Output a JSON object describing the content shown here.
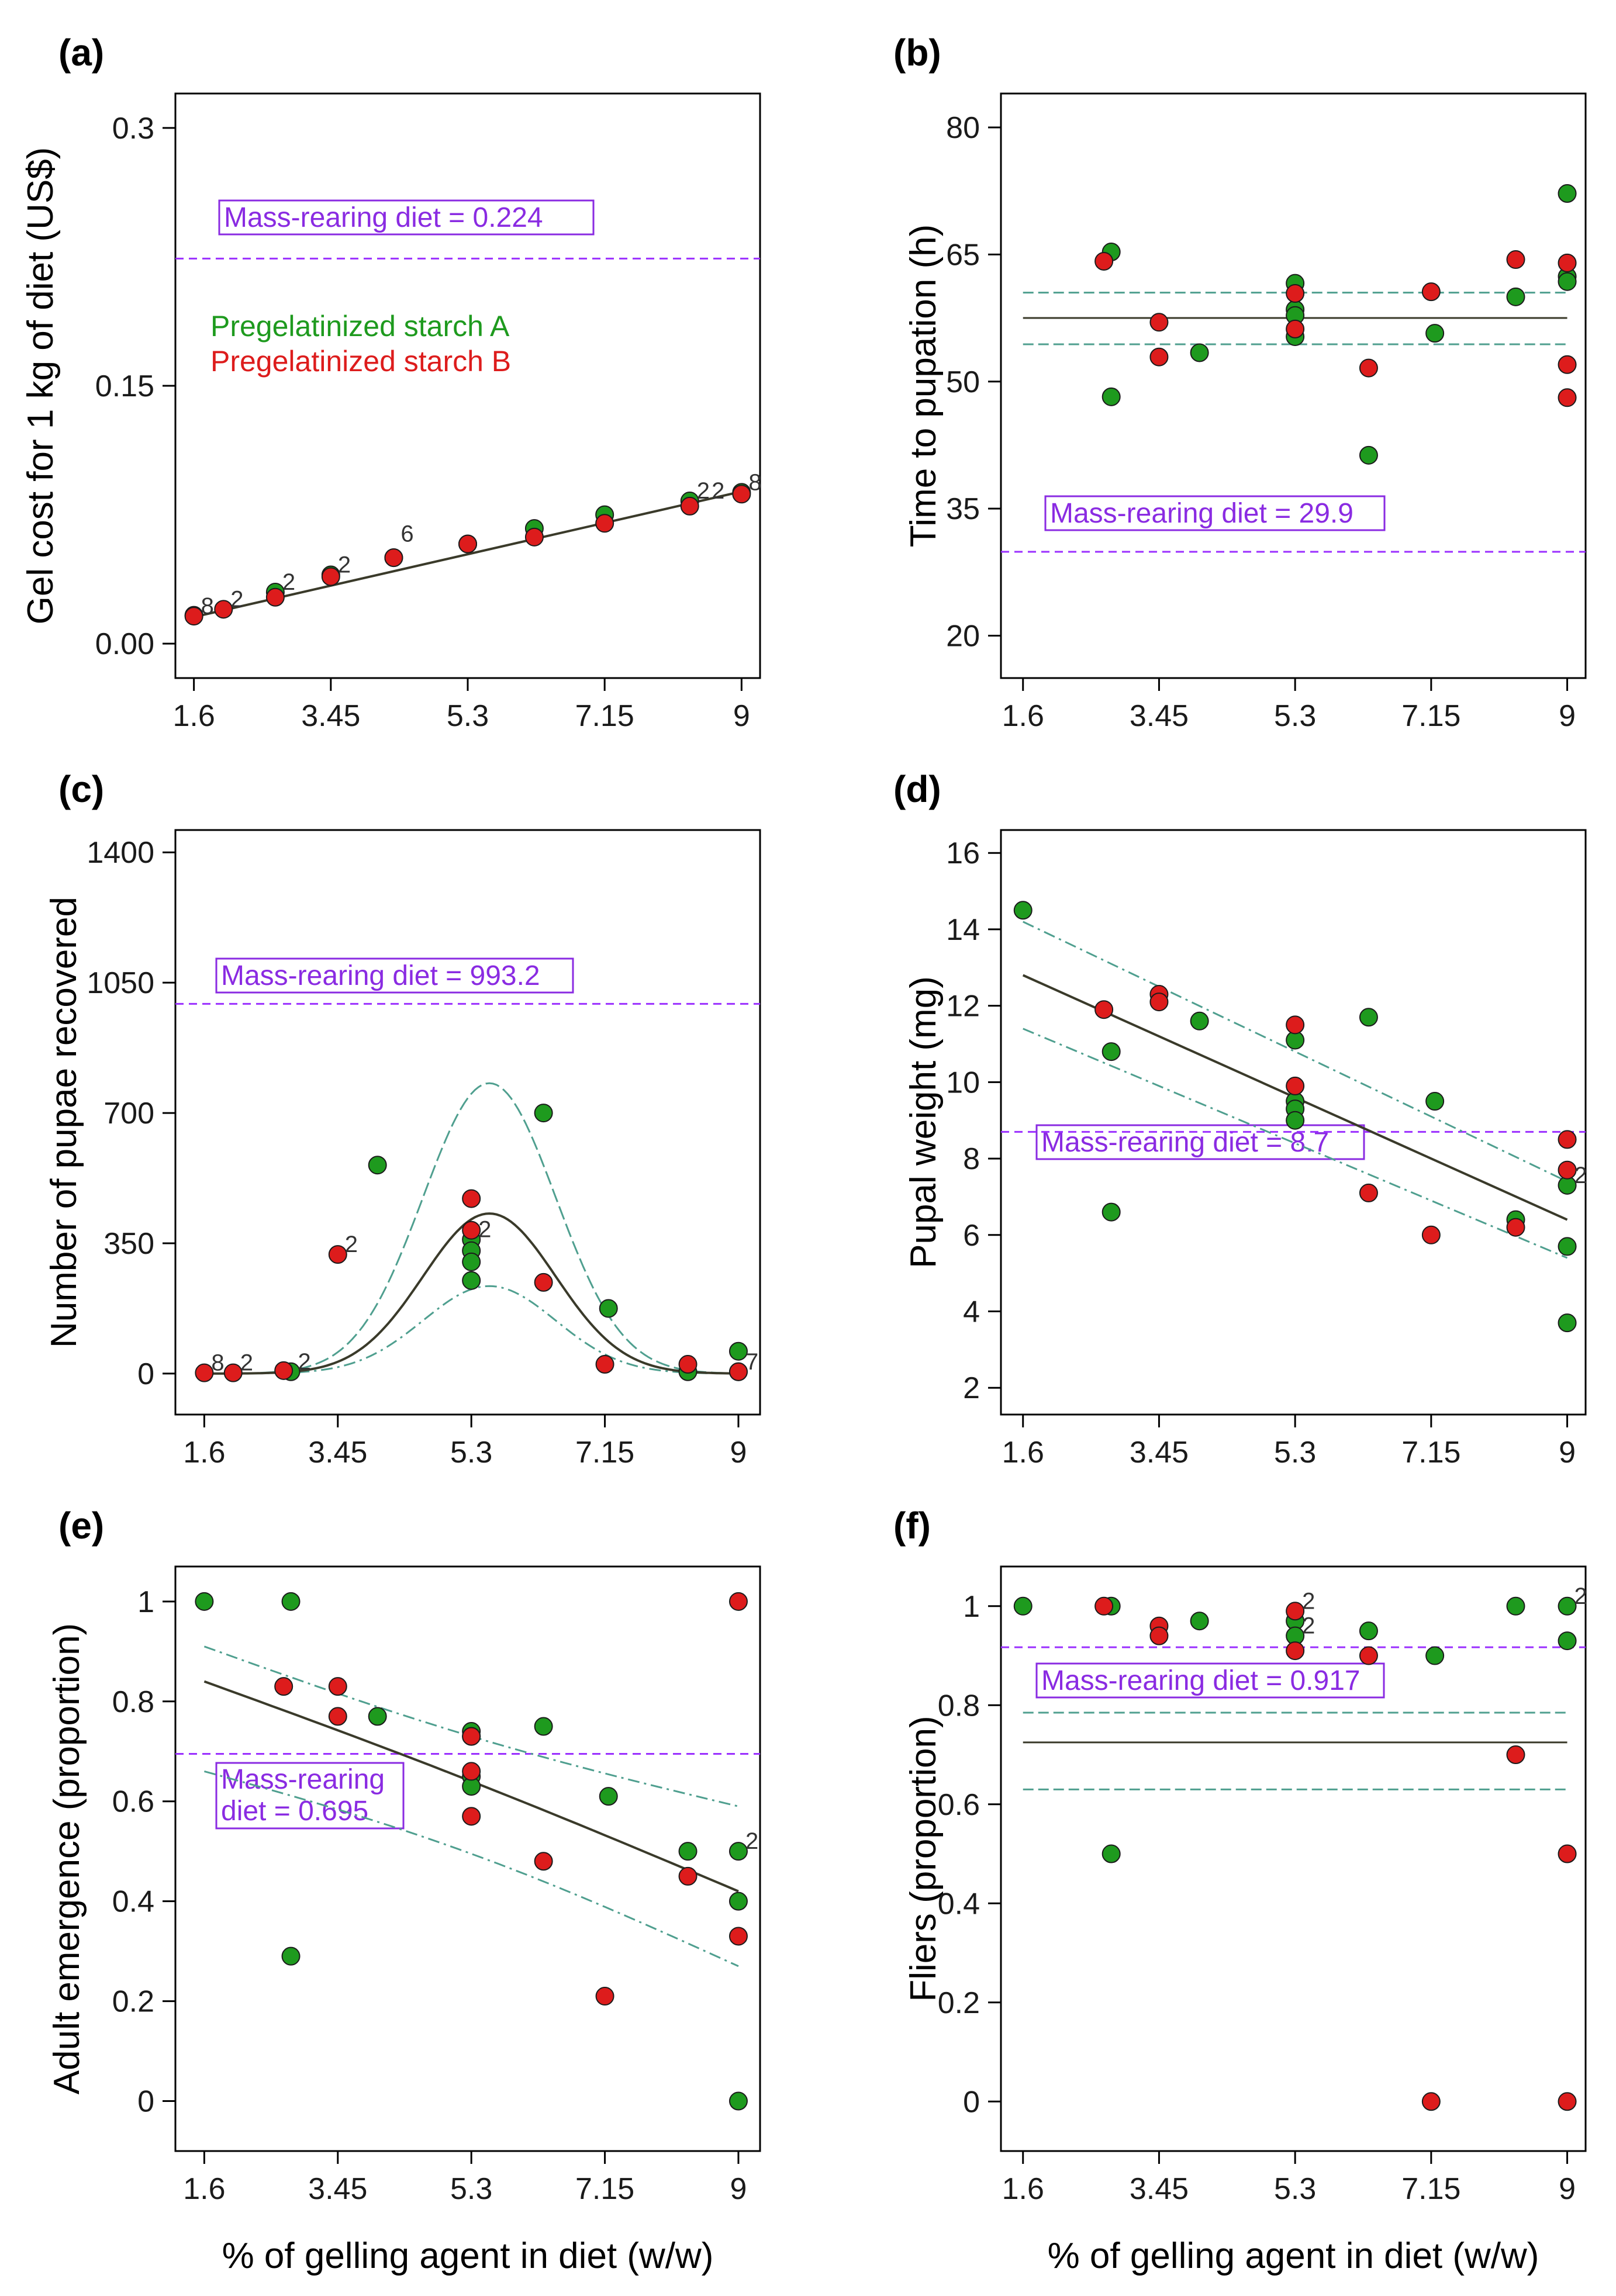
{
  "colors": {
    "starch_a": "#1e9a1e",
    "starch_b": "#dd1c1c",
    "reference": "#9b30ff",
    "fit": "#3a3a2a",
    "ci": "#4f9f8f",
    "axis": "#000000"
  },
  "x_axis_label": "% of gelling agent in diet (w/w)",
  "chart_data": [
    {
      "panel": "(a)",
      "type": "scatter",
      "ylabel": "Gel cost for 1 kg of diet (US$)",
      "xlim": [
        1.35,
        9.25
      ],
      "ylim": [
        -0.02,
        0.32
      ],
      "xticks": [
        1.6,
        3.45,
        5.3,
        7.15,
        9
      ],
      "xtick_labels": [
        "1.6",
        "3.45",
        "5.3",
        "7.15",
        "9"
      ],
      "yticks": [
        0,
        0.15,
        0.3
      ],
      "ytick_labels": [
        "0.00",
        "0.15",
        "0.3"
      ],
      "reference": {
        "value": 0.224,
        "label": "Mass-rearing diet = 0.224",
        "box_anchor": "top-left"
      },
      "legend": {
        "entries": [
          "Pregelatinized starch A",
          "Pregelatinized starch B"
        ],
        "position": "upper-left"
      },
      "series": [
        {
          "name": "Pregelatinized starch A",
          "points": [
            [
              1.6,
              0.0165
            ],
            [
              2.7,
              0.03
            ],
            [
              3.45,
              0.04
            ],
            [
              4.3,
              0.05
            ],
            [
              5.3,
              0.058
            ],
            [
              6.2,
              0.067
            ],
            [
              7.15,
              0.075
            ],
            [
              8.3,
              0.083
            ],
            [
              9,
              0.088
            ]
          ]
        },
        {
          "name": "Pregelatinized starch B",
          "points": [
            [
              1.6,
              0.016
            ],
            [
              2,
              0.02
            ],
            [
              2.7,
              0.027
            ],
            [
              3.45,
              0.039
            ],
            [
              4.3,
              0.05
            ],
            [
              5.3,
              0.058
            ],
            [
              6.2,
              0.062
            ],
            [
              7.15,
              0.07
            ],
            [
              8.3,
              0.08
            ],
            [
              9,
              0.087
            ]
          ]
        }
      ],
      "fit": {
        "kind": "line",
        "x": [
          1.6,
          9
        ],
        "y": [
          0.0155,
          0.0885
        ]
      },
      "annotations": [
        {
          "x": 1.6,
          "y": 0.016,
          "text": "8"
        },
        {
          "x": 2.0,
          "y": 0.02,
          "text": "2"
        },
        {
          "x": 2.7,
          "y": 0.03,
          "text": "2"
        },
        {
          "x": 3.45,
          "y": 0.04,
          "text": "2"
        },
        {
          "x": 4.3,
          "y": 0.058,
          "text": "6"
        },
        {
          "x": 8.3,
          "y": 0.083,
          "text": "2"
        },
        {
          "x": 8.5,
          "y": 0.083,
          "text": "2"
        },
        {
          "x": 9,
          "y": 0.088,
          "text": "8"
        }
      ]
    },
    {
      "panel": "(b)",
      "type": "scatter",
      "ylabel": "Time to pupation (h)",
      "xlim": [
        1.3,
        9.25
      ],
      "ylim": [
        15,
        84
      ],
      "xticks": [
        1.6,
        3.45,
        5.3,
        7.15,
        9
      ],
      "xtick_labels": [
        "1.6",
        "3.45",
        "5.3",
        "7.15",
        "9"
      ],
      "yticks": [
        20,
        35,
        50,
        65,
        80
      ],
      "ytick_labels": [
        "20",
        "35",
        "50",
        "65",
        "80"
      ],
      "reference": {
        "value": 29.9,
        "label": "Mass-rearing diet = 29.9",
        "box_anchor": "top-left"
      },
      "series": [
        {
          "name": "Pregelatinized starch A",
          "points": [
            [
              2.8,
              65.3
            ],
            [
              2.8,
              48.2
            ],
            [
              4,
              53.4
            ],
            [
              5.3,
              61.6
            ],
            [
              5.3,
              58.5
            ],
            [
              5.3,
              57.8
            ],
            [
              5.3,
              55.3
            ],
            [
              6.3,
              41.3
            ],
            [
              7.2,
              55.7
            ],
            [
              8.3,
              60
            ],
            [
              9,
              72.2
            ],
            [
              9,
              62.4
            ],
            [
              9,
              61.8
            ]
          ]
        },
        {
          "name": "Pregelatinized starch B",
          "points": [
            [
              2.7,
              64.2
            ],
            [
              3.45,
              57
            ],
            [
              3.45,
              52.9
            ],
            [
              5.3,
              60.4
            ],
            [
              5.3,
              56.2
            ],
            [
              6.3,
              51.6
            ],
            [
              7.15,
              60.6
            ],
            [
              8.3,
              64.4
            ],
            [
              9,
              64
            ],
            [
              9,
              52
            ],
            [
              9,
              48.1
            ]
          ]
        }
      ],
      "fit": {
        "kind": "flat",
        "x": [
          1.6,
          9
        ],
        "y": 57.5,
        "ci": [
          54.4,
          60.5
        ]
      }
    },
    {
      "panel": "(c)",
      "type": "scatter",
      "ylabel": "Number of pupae recovered",
      "xlim": [
        1.2,
        9.3
      ],
      "ylim": [
        -110,
        1460
      ],
      "xticks": [
        1.6,
        3.45,
        5.3,
        7.15,
        9
      ],
      "xtick_labels": [
        "1.6",
        "3.45",
        "5.3",
        "7.15",
        "9"
      ],
      "yticks": [
        0,
        350,
        700,
        1050,
        1400
      ],
      "ytick_labels": [
        "0",
        "350",
        "700",
        "1050",
        "1400"
      ],
      "reference": {
        "value": 993.2,
        "label": "Mass-rearing diet = 993.2",
        "box_anchor": "top-left"
      },
      "series": [
        {
          "name": "Pregelatinized starch A",
          "points": [
            [
              2.8,
              5
            ],
            [
              4,
              560
            ],
            [
              5.3,
              360
            ],
            [
              5.3,
              330
            ],
            [
              5.3,
              300
            ],
            [
              5.3,
              250
            ],
            [
              6.3,
              700
            ],
            [
              7.2,
              175
            ],
            [
              8.3,
              5
            ],
            [
              9,
              60
            ],
            [
              9,
              5
            ]
          ]
        },
        {
          "name": "Pregelatinized starch B",
          "points": [
            [
              1.6,
              2
            ],
            [
              2,
              2
            ],
            [
              2.7,
              8
            ],
            [
              3.45,
              320
            ],
            [
              5.3,
              470
            ],
            [
              5.3,
              385
            ],
            [
              6.3,
              245
            ],
            [
              7.15,
              25
            ],
            [
              8.3,
              25
            ],
            [
              9,
              5
            ]
          ]
        }
      ],
      "fit": {
        "kind": "gaussian",
        "peak": 430,
        "ci_upper_peak": 780,
        "ci_lower_peak": 235,
        "center": 5.55,
        "sigma": 0.92,
        "x_range": [
          1.6,
          9
        ]
      },
      "annotations": [
        {
          "x": 1.6,
          "y": 2,
          "text": "8"
        },
        {
          "x": 2.0,
          "y": 2,
          "text": "2"
        },
        {
          "x": 2.8,
          "y": 5,
          "text": "2"
        },
        {
          "x": 3.45,
          "y": 320,
          "text": "2"
        },
        {
          "x": 5.3,
          "y": 360,
          "text": "2"
        },
        {
          "x": 9,
          "y": 5,
          "text": "7"
        }
      ]
    },
    {
      "panel": "(d)",
      "type": "scatter",
      "ylabel": "Pupal weight (mg)",
      "xlim": [
        1.3,
        9.25
      ],
      "ylim": [
        1.3,
        16.6
      ],
      "xticks": [
        1.6,
        3.45,
        5.3,
        7.15,
        9
      ],
      "xtick_labels": [
        "1.6",
        "3.45",
        "5.3",
        "7.15",
        "9"
      ],
      "yticks": [
        2,
        4,
        6,
        8,
        10,
        12,
        14,
        16
      ],
      "ytick_labels": [
        "2",
        "4",
        "6",
        "8",
        "10",
        "12",
        "14",
        "16"
      ],
      "reference": {
        "value": 8.7,
        "label": "Mass-rearing diet = 8.7",
        "box_anchor": "below-left"
      },
      "series": [
        {
          "name": "Pregelatinized starch A",
          "points": [
            [
              1.6,
              14.5
            ],
            [
              2.8,
              10.8
            ],
            [
              2.8,
              6.6
            ],
            [
              4,
              11.6
            ],
            [
              5.3,
              11.1
            ],
            [
              5.3,
              9.5
            ],
            [
              5.3,
              9.3
            ],
            [
              5.3,
              9.0
            ],
            [
              6.3,
              11.7
            ],
            [
              7.2,
              9.5
            ],
            [
              8.3,
              6.4
            ],
            [
              9,
              7.3
            ],
            [
              9,
              5.7
            ],
            [
              9,
              3.7
            ]
          ]
        },
        {
          "name": "Pregelatinized starch B",
          "points": [
            [
              2.7,
              11.9
            ],
            [
              3.45,
              12.3
            ],
            [
              3.45,
              12.1
            ],
            [
              5.3,
              11.5
            ],
            [
              5.3,
              9.9
            ],
            [
              6.3,
              7.1
            ],
            [
              7.15,
              6.0
            ],
            [
              8.3,
              6.2
            ],
            [
              9,
              8.5
            ],
            [
              9,
              7.7
            ]
          ]
        }
      ],
      "fit": {
        "kind": "line",
        "x": [
          1.6,
          9
        ],
        "y": [
          12.8,
          6.4
        ],
        "ci_upper": [
          14.2,
          7.4
        ],
        "ci_lower": [
          11.4,
          5.4
        ]
      },
      "annotations": [
        {
          "x": 9,
          "y": 7.3,
          "text": "2"
        }
      ]
    },
    {
      "panel": "(e)",
      "type": "scatter",
      "ylabel": "Adult emergence (proportion)",
      "xlim": [
        1.2,
        9.3
      ],
      "ylim": [
        -0.1,
        1.07
      ],
      "xticks": [
        1.6,
        3.45,
        5.3,
        7.15,
        9
      ],
      "xtick_labels": [
        "1.6",
        "3.45",
        "5.3",
        "7.15",
        "9"
      ],
      "yticks": [
        0,
        0.2,
        0.4,
        0.6,
        0.8,
        1
      ],
      "ytick_labels": [
        "0",
        "0.2",
        "0.4",
        "0.6",
        "0.8",
        "1"
      ],
      "reference": {
        "value": 0.695,
        "label_lines": [
          "Mass-rearing",
          "diet = 0.695"
        ],
        "box_anchor": "below-left"
      },
      "series": [
        {
          "name": "Pregelatinized starch A",
          "points": [
            [
              1.6,
              1.0
            ],
            [
              2.8,
              1.0
            ],
            [
              2.8,
              0.29
            ],
            [
              4,
              0.77
            ],
            [
              5.3,
              0.74
            ],
            [
              5.3,
              0.73
            ],
            [
              5.3,
              0.65
            ],
            [
              5.3,
              0.63
            ],
            [
              6.3,
              0.75
            ],
            [
              7.2,
              0.61
            ],
            [
              8.3,
              0.5
            ],
            [
              9,
              0.5
            ],
            [
              9,
              0.4
            ],
            [
              9,
              0.0
            ]
          ]
        },
        {
          "name": "Pregelatinized starch B",
          "points": [
            [
              2.7,
              0.83
            ],
            [
              3.45,
              0.83
            ],
            [
              3.45,
              0.77
            ],
            [
              5.3,
              0.73
            ],
            [
              5.3,
              0.66
            ],
            [
              5.3,
              0.57
            ],
            [
              6.3,
              0.48
            ],
            [
              7.15,
              0.21
            ],
            [
              8.3,
              0.45
            ],
            [
              9,
              1.0
            ],
            [
              9,
              0.33
            ]
          ]
        }
      ],
      "fit": {
        "kind": "logistic-like",
        "x": [
          1.6,
          9
        ],
        "center_curve": [
          0.84,
          0.42
        ],
        "ci_upper": [
          0.91,
          0.59
        ],
        "ci_lower": [
          0.66,
          0.27
        ]
      },
      "annotations": [
        {
          "x": 9,
          "y": 0.5,
          "text": "2"
        }
      ]
    },
    {
      "panel": "(f)",
      "type": "scatter",
      "ylabel": "Fliers (proportion)",
      "xlim": [
        1.3,
        9.25
      ],
      "ylim": [
        -0.1,
        1.08
      ],
      "xticks": [
        1.6,
        3.45,
        5.3,
        7.15,
        9
      ],
      "xtick_labels": [
        "1.6",
        "3.45",
        "5.3",
        "7.15",
        "9"
      ],
      "yticks": [
        0,
        0.2,
        0.4,
        0.6,
        0.8,
        1
      ],
      "ytick_labels": [
        "0",
        "0.2",
        "0.4",
        "0.6",
        "0.8",
        "1"
      ],
      "reference": {
        "value": 0.917,
        "label": "Mass-rearing diet = 0.917",
        "box_anchor": "below-left"
      },
      "series": [
        {
          "name": "Pregelatinized starch A",
          "points": [
            [
              1.6,
              1.0
            ],
            [
              2.8,
              1.0
            ],
            [
              2.8,
              0.5
            ],
            [
              4,
              0.97
            ],
            [
              5.3,
              0.97
            ],
            [
              5.3,
              0.94
            ],
            [
              6.3,
              0.95
            ],
            [
              7.2,
              0.9
            ],
            [
              8.3,
              1.0
            ],
            [
              9,
              1.0
            ],
            [
              9,
              0.93
            ]
          ]
        },
        {
          "name": "Pregelatinized starch B",
          "points": [
            [
              2.7,
              1.0
            ],
            [
              3.45,
              0.96
            ],
            [
              3.45,
              0.94
            ],
            [
              5.3,
              0.99
            ],
            [
              5.3,
              0.91
            ],
            [
              6.3,
              0.9
            ],
            [
              7.15,
              0.0
            ],
            [
              8.3,
              0.7
            ],
            [
              9,
              0.5
            ],
            [
              9,
              0.0
            ]
          ]
        }
      ],
      "fit": {
        "kind": "flat",
        "x": [
          1.6,
          9
        ],
        "y": 0.725,
        "ci": [
          0.63,
          0.785
        ]
      },
      "annotations": [
        {
          "x": 5.3,
          "y": 0.99,
          "text": "2"
        },
        {
          "x": 5.3,
          "y": 0.94,
          "text": "2"
        },
        {
          "x": 9,
          "y": 1.0,
          "text": "2"
        }
      ]
    }
  ]
}
